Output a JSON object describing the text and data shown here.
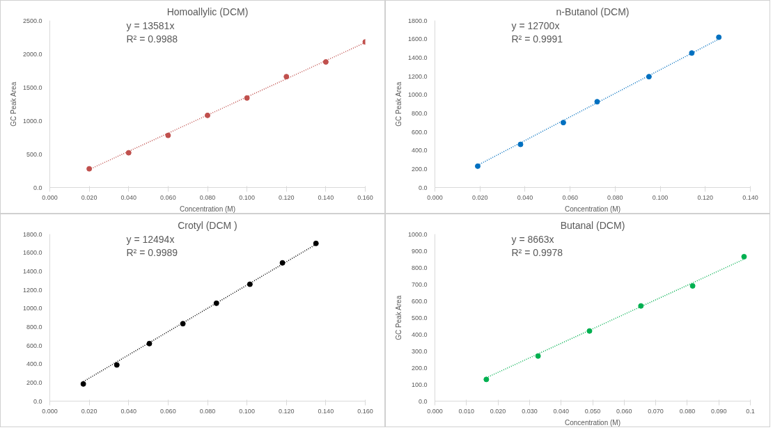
{
  "chart_data": [
    {
      "type": "scatter",
      "title": "Homoallylic (DCM)",
      "xlabel": "Concentration (M)",
      "ylabel": "GC Peak Area",
      "grid": false,
      "xlim": [
        0,
        0.16
      ],
      "ylim": [
        0,
        2500
      ],
      "xticks": [
        {
          "value": 0,
          "label": "0.000"
        },
        {
          "value": 0.02,
          "label": "0.020"
        },
        {
          "value": 0.04,
          "label": "0.040"
        },
        {
          "value": 0.06,
          "label": "0.060"
        },
        {
          "value": 0.08,
          "label": "0.080"
        },
        {
          "value": 0.1,
          "label": "0.100"
        },
        {
          "value": 0.12,
          "label": "0.120"
        },
        {
          "value": 0.14,
          "label": "0.140"
        },
        {
          "value": 0.16,
          "label": "0.160"
        }
      ],
      "yticks": [
        {
          "value": 0,
          "label": "0.0"
        },
        {
          "value": 500,
          "label": "500.0"
        },
        {
          "value": 1000,
          "label": "1000.0"
        },
        {
          "value": 1500,
          "label": "1500.0"
        },
        {
          "value": 2000,
          "label": "2000.0"
        },
        {
          "value": 2500,
          "label": "2500.0"
        }
      ],
      "annotations": [
        "y = 13581x",
        "R² = 0.9988"
      ],
      "series": [
        {
          "color": "#c0504d",
          "marker": "circle",
          "x": [
            0.02,
            0.04,
            0.06,
            0.08,
            0.1,
            0.12,
            0.14,
            0.16
          ],
          "values": [
            280,
            520,
            780,
            1080,
            1340,
            1660,
            1880,
            2180
          ]
        },
        {
          "type": "line",
          "line_style": "dotted",
          "color": "#c0504d",
          "x": [
            0.02,
            0.16
          ],
          "values": [
            270,
            2170
          ],
          "marker": "none"
        }
      ]
    },
    {
      "type": "scatter",
      "title": "n-Butanol (DCM)",
      "xlabel": "Concentration (M)",
      "ylabel": "GC Peak Area",
      "grid": false,
      "xlim": [
        0,
        0.14
      ],
      "ylim": [
        0,
        1800
      ],
      "xticks": [
        {
          "value": 0,
          "label": "0.000"
        },
        {
          "value": 0.02,
          "label": "0.020"
        },
        {
          "value": 0.04,
          "label": "0.040"
        },
        {
          "value": 0.06,
          "label": "0.060"
        },
        {
          "value": 0.08,
          "label": "0.080"
        },
        {
          "value": 0.1,
          "label": "0.100"
        },
        {
          "value": 0.12,
          "label": "0.120"
        },
        {
          "value": 0.14,
          "label": "0.140"
        }
      ],
      "yticks": [
        {
          "value": 0,
          "label": "0.0"
        },
        {
          "value": 200,
          "label": "200.0"
        },
        {
          "value": 400,
          "label": "400.0"
        },
        {
          "value": 600,
          "label": "600.0"
        },
        {
          "value": 800,
          "label": "800.0"
        },
        {
          "value": 1000,
          "label": "1000.0"
        },
        {
          "value": 1200,
          "label": "1200.0"
        },
        {
          "value": 1400,
          "label": "1400.0"
        },
        {
          "value": 1600,
          "label": "1600.0"
        },
        {
          "value": 1800,
          "label": "1800.0"
        }
      ],
      "annotations": [
        "y = 12700x",
        "R² = 0.9991"
      ],
      "series": [
        {
          "color": "#0070c0",
          "marker": "circle",
          "x": [
            0.019,
            0.038,
            0.057,
            0.072,
            0.095,
            0.114,
            0.126
          ],
          "values": [
            230,
            465,
            700,
            925,
            1195,
            1450,
            1620
          ]
        },
        {
          "type": "line",
          "line_style": "dotted",
          "color": "#0070c0",
          "x": [
            0.019,
            0.126
          ],
          "values": [
            240,
            1600
          ],
          "marker": "none"
        }
      ]
    },
    {
      "type": "scatter",
      "title": "Crotyl (DCM )",
      "grid": false,
      "xlim": [
        0,
        0.16
      ],
      "ylim": [
        0,
        1800
      ],
      "xticks": [
        {
          "value": 0,
          "label": "0.000"
        },
        {
          "value": 0.02,
          "label": "0.020"
        },
        {
          "value": 0.04,
          "label": "0.040"
        },
        {
          "value": 0.06,
          "label": "0.060"
        },
        {
          "value": 0.08,
          "label": "0.080"
        },
        {
          "value": 0.1,
          "label": "0.100"
        },
        {
          "value": 0.12,
          "label": "0.120"
        },
        {
          "value": 0.14,
          "label": "0.140"
        },
        {
          "value": 0.16,
          "label": "0.160"
        }
      ],
      "yticks": [
        {
          "value": 0,
          "label": "0.0"
        },
        {
          "value": 200,
          "label": "200.0"
        },
        {
          "value": 400,
          "label": "400.0"
        },
        {
          "value": 600,
          "label": "600.0"
        },
        {
          "value": 800,
          "label": "800.0"
        },
        {
          "value": 1000,
          "label": "1000.0"
        },
        {
          "value": 1200,
          "label": "1200.0"
        },
        {
          "value": 1400,
          "label": "1400.0"
        },
        {
          "value": 1600,
          "label": "1600.0"
        },
        {
          "value": 1800,
          "label": "1800.0"
        }
      ],
      "annotations": [
        "y = 12494x",
        "R² = 0.9989"
      ],
      "series": [
        {
          "color": "#000000",
          "marker": "circle",
          "x": [
            0.017,
            0.034,
            0.0505,
            0.0675,
            0.0845,
            0.1015,
            0.118,
            0.135
          ],
          "values": [
            185,
            390,
            620,
            835,
            1055,
            1260,
            1490,
            1700
          ]
        },
        {
          "type": "line",
          "line_style": "dotted",
          "color": "#000000",
          "x": [
            0.017,
            0.135
          ],
          "values": [
            210,
            1690
          ],
          "marker": "none"
        }
      ]
    },
    {
      "type": "scatter",
      "title": "Butanal (DCM)",
      "xlabel": "Concentration (M)",
      "ylabel": "GC Peak Area",
      "grid": false,
      "xlim": [
        0,
        0.1
      ],
      "ylim": [
        0,
        1000
      ],
      "xticks": [
        {
          "value": 0,
          "label": "0.000"
        },
        {
          "value": 0.01,
          "label": "0.010"
        },
        {
          "value": 0.02,
          "label": "0.020"
        },
        {
          "value": 0.03,
          "label": "0.030"
        },
        {
          "value": 0.04,
          "label": "0.040"
        },
        {
          "value": 0.05,
          "label": "0.050"
        },
        {
          "value": 0.06,
          "label": "0.060"
        },
        {
          "value": 0.07,
          "label": "0.070"
        },
        {
          "value": 0.08,
          "label": "0.080"
        },
        {
          "value": 0.09,
          "label": "0.090"
        },
        {
          "value": 0.1,
          "label": "0.1"
        }
      ],
      "yticks": [
        {
          "value": 0,
          "label": "0.0"
        },
        {
          "value": 100,
          "label": "100.0"
        },
        {
          "value": 200,
          "label": "200.0"
        },
        {
          "value": 300,
          "label": "300.0"
        },
        {
          "value": 400,
          "label": "400.0"
        },
        {
          "value": 500,
          "label": "500.0"
        },
        {
          "value": 600,
          "label": "600.0"
        },
        {
          "value": 700,
          "label": "700.0"
        },
        {
          "value": 800,
          "label": "800.0"
        },
        {
          "value": 900,
          "label": "900.0"
        },
        {
          "value": 1000,
          "label": "1000.0"
        }
      ],
      "annotations": [
        "y = 8663x",
        "R² = 0.9978"
      ],
      "series": [
        {
          "color": "#00b050",
          "marker": "circle",
          "x": [
            0.0163,
            0.0327,
            0.049,
            0.0653,
            0.0817,
            0.098
          ],
          "values": [
            130,
            270,
            420,
            570,
            690,
            865
          ]
        },
        {
          "type": "line",
          "line_style": "dotted",
          "color": "#00b050",
          "x": [
            0.0163,
            0.098
          ],
          "values": [
            140,
            850
          ],
          "marker": "none"
        }
      ]
    }
  ]
}
